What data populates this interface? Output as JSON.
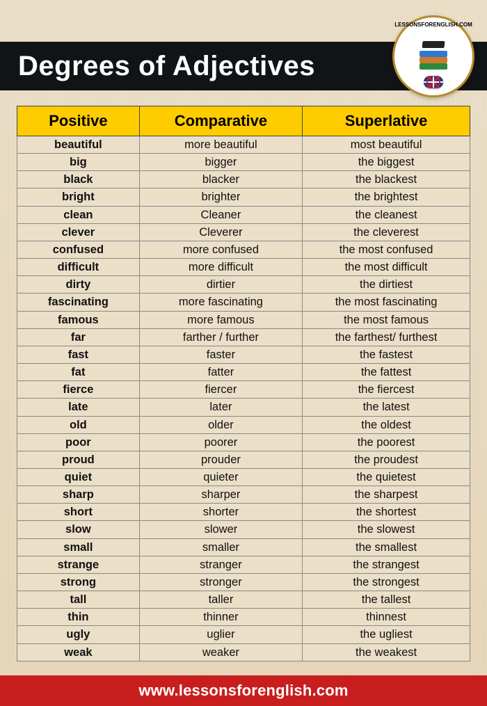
{
  "header": {
    "title": "Degrees of Adjectives"
  },
  "logo": {
    "top_text": "LessonsForEnglish.Com",
    "book_colors": [
      "#2e7bd1",
      "#cc7a2b",
      "#2d8a3d"
    ]
  },
  "table": {
    "type": "table",
    "header_bg": "#ffcc00",
    "header_text_color": "#000000",
    "border_color": "#555555",
    "cell_border_color": "#888888",
    "positive_bold": true,
    "column_widths_pct": [
      27,
      36,
      37
    ],
    "header_fontsize": 22,
    "cell_fontsize": 16.5,
    "columns": [
      "Positive",
      "Comparative",
      "Superlative"
    ],
    "rows": [
      [
        "beautiful",
        "more beautiful",
        "most beautiful"
      ],
      [
        "big",
        "bigger",
        "the biggest"
      ],
      [
        "black",
        "blacker",
        "the blackest"
      ],
      [
        "bright",
        "brighter",
        "the brightest"
      ],
      [
        "clean",
        "Cleaner",
        "the cleanest"
      ],
      [
        "clever",
        "Cleverer",
        "the cleverest"
      ],
      [
        "confused",
        "more confused",
        "the most confused"
      ],
      [
        "difficult",
        "more difficult",
        "the most difficult"
      ],
      [
        "dirty",
        "dirtier",
        "the dirtiest"
      ],
      [
        "fascinating",
        "more fascinating",
        "the most fascinating"
      ],
      [
        "famous",
        "more famous",
        "the most famous"
      ],
      [
        "far",
        "farther / further",
        "the farthest/ furthest"
      ],
      [
        "fast",
        "faster",
        "the fastest"
      ],
      [
        "fat",
        "fatter",
        "the fattest"
      ],
      [
        "fierce",
        "fiercer",
        "the fiercest"
      ],
      [
        "late",
        "later",
        "the latest"
      ],
      [
        "old",
        "older",
        "the oldest"
      ],
      [
        "poor",
        "poorer",
        "the poorest"
      ],
      [
        "proud",
        "prouder",
        "the proudest"
      ],
      [
        "quiet",
        "quieter",
        "the quietest"
      ],
      [
        "sharp",
        "sharper",
        "the sharpest"
      ],
      [
        "short",
        "shorter",
        "the shortest"
      ],
      [
        "slow",
        "slower",
        "the slowest"
      ],
      [
        "small",
        "smaller",
        "the smallest"
      ],
      [
        "strange",
        "stranger",
        "the strangest"
      ],
      [
        "strong",
        "stronger",
        "the strongest"
      ],
      [
        "tall",
        "taller",
        "the tallest"
      ],
      [
        "thin",
        "thinner",
        "thinnest"
      ],
      [
        "ugly",
        "uglier",
        "the ugliest"
      ],
      [
        "weak",
        "weaker",
        "the weakest"
      ]
    ]
  },
  "footer": {
    "url": "www.lessonsforenglish.com"
  },
  "colors": {
    "page_bg": "#e8d9c0",
    "header_bg": "#111416",
    "header_text": "#ffffff",
    "footer_bg": "#c81e1e",
    "footer_text": "#ffffff",
    "logo_border": "#b78a2e"
  }
}
